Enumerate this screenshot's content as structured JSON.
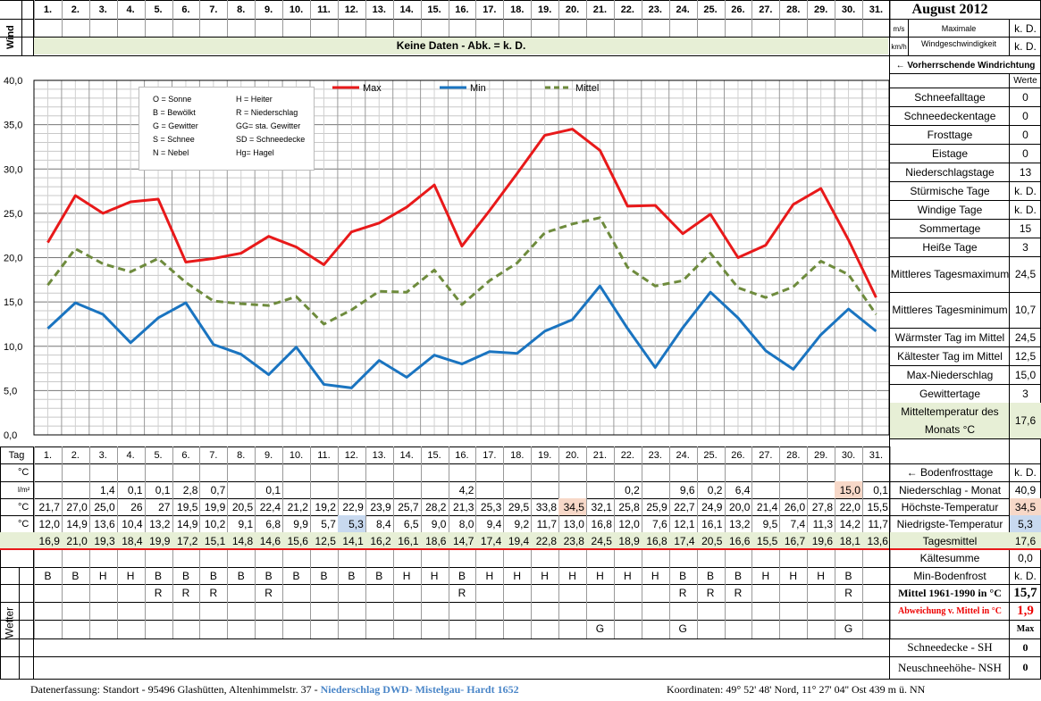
{
  "title": "August 2012",
  "days": [
    "1.",
    "2.",
    "3.",
    "4.",
    "5.",
    "6.",
    "7.",
    "8.",
    "9.",
    "10.",
    "11.",
    "12.",
    "13.",
    "14.",
    "15.",
    "16.",
    "17.",
    "18.",
    "19.",
    "20.",
    "21.",
    "22.",
    "23.",
    "24.",
    "25.",
    "26.",
    "27.",
    "28.",
    "29.",
    "30.",
    "31."
  ],
  "wind": {
    "side_label": "Wind",
    "no_data": "Keine Daten - Abk. = k. D.",
    "unit_ms": "m/s",
    "unit_kmh": "km/h",
    "max_label_1": "Maximale",
    "max_label_2": "Windgeschwindigkeit",
    "val_ms": "k. D.",
    "val_kmh": "k. D.",
    "direction": "← Vorherrschende Windrichtung"
  },
  "legend_symbols": [
    [
      "O = Sonne",
      "H = Heiter"
    ],
    [
      "B = Bewölkt",
      "R = Niederschlag"
    ],
    [
      "G = Gewitter",
      "GG= sta. Gewitter"
    ],
    [
      "S = Schnee",
      "SD = Schneedecke"
    ],
    [
      "N = Nebel",
      "Hg= Hagel"
    ]
  ],
  "chart_data": {
    "type": "line",
    "x": [
      1,
      2,
      3,
      4,
      5,
      6,
      7,
      8,
      9,
      10,
      11,
      12,
      13,
      14,
      15,
      16,
      17,
      18,
      19,
      20,
      21,
      22,
      23,
      24,
      25,
      26,
      27,
      28,
      29,
      30,
      31
    ],
    "ylim": [
      0,
      40
    ],
    "yticks": [
      "0,0",
      "5,0",
      "10,0",
      "15,0",
      "20,0",
      "25,0",
      "30,0",
      "35,0",
      "40,0"
    ],
    "series": [
      {
        "name": "Max",
        "color": "#e8191a",
        "dash": false,
        "values": [
          21.7,
          27.0,
          25.0,
          26.3,
          26.6,
          19.5,
          19.9,
          20.5,
          22.4,
          21.2,
          19.2,
          22.9,
          23.9,
          25.7,
          28.2,
          21.3,
          25.3,
          29.5,
          33.8,
          34.5,
          32.1,
          25.8,
          25.9,
          22.7,
          24.9,
          20.0,
          21.4,
          26.0,
          27.8,
          22.0,
          15.5
        ]
      },
      {
        "name": "Min",
        "color": "#1a74c0",
        "dash": false,
        "values": [
          12.0,
          14.9,
          13.6,
          10.4,
          13.2,
          14.9,
          10.2,
          9.1,
          6.8,
          9.9,
          5.7,
          5.3,
          8.4,
          6.5,
          9.0,
          8.0,
          9.4,
          9.2,
          11.7,
          13.0,
          16.8,
          12.0,
          7.6,
          12.1,
          16.1,
          13.2,
          9.5,
          7.4,
          11.3,
          14.2,
          11.7
        ]
      },
      {
        "name": "Mittel",
        "color": "#6e8b3d",
        "dash": true,
        "values": [
          16.9,
          21.0,
          19.3,
          18.4,
          19.9,
          17.2,
          15.1,
          14.8,
          14.6,
          15.6,
          12.5,
          14.1,
          16.2,
          16.1,
          18.6,
          14.7,
          17.4,
          19.4,
          22.8,
          23.8,
          24.5,
          18.9,
          16.8,
          17.4,
          20.5,
          16.6,
          15.5,
          16.7,
          19.6,
          18.1,
          13.6
        ]
      }
    ]
  },
  "stats_header": "Werte",
  "stats": [
    {
      "label": "Schneefalltage",
      "value": "0"
    },
    {
      "label": "Schneedeckentage",
      "value": "0"
    },
    {
      "label": "Frosttage",
      "value": "0"
    },
    {
      "label": "Eistage",
      "value": "0"
    },
    {
      "label": "Niederschlagstage",
      "value": "13"
    },
    {
      "label": "Stürmische Tage",
      "value": "k. D."
    },
    {
      "label": "Windige Tage",
      "value": "k. D."
    },
    {
      "label": "Sommertage",
      "value": "15"
    },
    {
      "label": "Heiße Tage",
      "value": "3"
    },
    {
      "label": "Mittleres Tagesmaximum",
      "value": "24,5"
    },
    {
      "label": "Mittleres Tagesminimum",
      "value": "10,7"
    },
    {
      "label": "Wärmster Tag im Mittel",
      "value": "24,5"
    },
    {
      "label": "Kältester Tag im Mittel",
      "value": "12,5"
    },
    {
      "label": "Max-Niederschlag",
      "value": "15,0"
    },
    {
      "label": "Gewittertage",
      "value": "3"
    },
    {
      "label": "Mitteltemperatur des Monats °C",
      "value": "17,6"
    }
  ],
  "table": {
    "tag_label": "Tag",
    "unit_c": "°C",
    "unit_lm2": "l/m²",
    "frost": [
      "",
      "",
      "",
      "",
      "",
      "",
      "",
      "",
      "",
      "",
      "",
      "",
      "",
      "",
      "",
      "",
      "",
      "",
      "",
      "",
      "",
      "",
      "",
      "",
      "",
      "",
      "",
      "",
      "",
      "",
      ""
    ],
    "precip": [
      "",
      "",
      "1,4",
      "0,1",
      "0,1",
      "2,8",
      "0,7",
      "",
      "0,1",
      "",
      "",
      "",
      "",
      "",
      "",
      "4,2",
      "",
      "",
      "",
      "",
      "",
      "0,2",
      "",
      "9,6",
      "0,2",
      "6,4",
      "",
      "",
      "",
      "15,0",
      "0,1"
    ],
    "max": [
      "21,7",
      "27,0",
      "25,0",
      "26",
      "27",
      "19,5",
      "19,9",
      "20,5",
      "22,4",
      "21,2",
      "19,2",
      "22,9",
      "23,9",
      "25,7",
      "28,2",
      "21,3",
      "25,3",
      "29,5",
      "33,8",
      "34,5",
      "32,1",
      "25,8",
      "25,9",
      "22,7",
      "24,9",
      "20,0",
      "21,4",
      "26,0",
      "27,8",
      "22,0",
      "15,5"
    ],
    "min": [
      "12,0",
      "14,9",
      "13,6",
      "10,4",
      "13,2",
      "14,9",
      "10,2",
      "9,1",
      "6,8",
      "9,9",
      "5,7",
      "5,3",
      "8,4",
      "6,5",
      "9,0",
      "8,0",
      "9,4",
      "9,2",
      "11,7",
      "13,0",
      "16,8",
      "12,0",
      "7,6",
      "12,1",
      "16,1",
      "13,2",
      "9,5",
      "7,4",
      "11,3",
      "14,2",
      "11,7"
    ],
    "mean": [
      "16,9",
      "21,0",
      "19,3",
      "18,4",
      "19,9",
      "17,2",
      "15,1",
      "14,8",
      "14,6",
      "15,6",
      "12,5",
      "14,1",
      "16,2",
      "16,1",
      "18,6",
      "14,7",
      "17,4",
      "19,4",
      "22,8",
      "23,8",
      "24,5",
      "18,9",
      "16,8",
      "17,4",
      "20,5",
      "16,6",
      "15,5",
      "16,7",
      "19,6",
      "18,1",
      "13,6"
    ],
    "weather_label": "Wetter",
    "weather1": [
      "B",
      "B",
      "H",
      "H",
      "B",
      "B",
      "B",
      "B",
      "B",
      "B",
      "B",
      "B",
      "B",
      "H",
      "H",
      "B",
      "H",
      "H",
      "H",
      "H",
      "H",
      "H",
      "H",
      "B",
      "B",
      "B",
      "H",
      "H",
      "H",
      "B",
      ""
    ],
    "weather2": [
      "",
      "",
      "",
      "",
      "R",
      "R",
      "R",
      "",
      "R",
      "",
      "",
      "",
      "",
      "",
      "",
      "R",
      "",
      "",
      "",
      "",
      "",
      "",
      "",
      "R",
      "R",
      "R",
      "",
      "",
      "",
      "R",
      ""
    ],
    "weather3": [
      "",
      "",
      "",
      "",
      "",
      "",
      "",
      "",
      "",
      "",
      "",
      "",
      "",
      "",
      "",
      "",
      "",
      "",
      "",
      "",
      "",
      "",
      "",
      "",
      "",
      "",
      "",
      "",
      "",
      "",
      ""
    ],
    "weather4": [
      "",
      "",
      "",
      "",
      "",
      "",
      "",
      "",
      "",
      "",
      "",
      "",
      "",
      "",
      "",
      "",
      "",
      "",
      "",
      "",
      "G",
      "",
      "",
      "G",
      "",
      "",
      "",
      "",
      "",
      "G",
      ""
    ]
  },
  "right_rows": [
    {
      "label": "← Bodenfrosttage",
      "value": "k. D."
    },
    {
      "label": "Niederschlag - Monat",
      "value": "40,9"
    },
    {
      "label": "Höchste-Temperatur",
      "value": "34,5"
    },
    {
      "label": "Niedrigste-Temperatur",
      "value": "5,3"
    },
    {
      "label": "Tagesmittel",
      "value": "17,6"
    },
    {
      "label": "Kältesumme",
      "value": "0,0"
    },
    {
      "label": "Min-Bodenfrost",
      "value": "k. D."
    },
    {
      "label": "Mittel 1961-1990 in °C",
      "value": "15,7"
    },
    {
      "label": "Abweichung v. Mittel in °C",
      "value": "1,9"
    },
    {
      "label": "",
      "value": "Max"
    },
    {
      "label": "Schneedecke -   SH",
      "value": "0"
    },
    {
      "label": "Neuschneehöhe- NSH",
      "value": "0"
    }
  ],
  "footer": {
    "left": "Datenerfassung:  Standort -  95496  Glashütten, Altenhimmelstr. 37 -",
    "link": "Niederschlag DWD- Mistelgau- Hardt 1652",
    "right": "Koordinaten:  49° 52' 48' Nord,   11° 27' 04'' Ost   439 m ü. NN"
  },
  "colors": {
    "green_band": "#e7efd6",
    "peach": "#f7d8c8",
    "blue_cell": "#c8d9ef",
    "stat_green": "#e7efd6"
  }
}
